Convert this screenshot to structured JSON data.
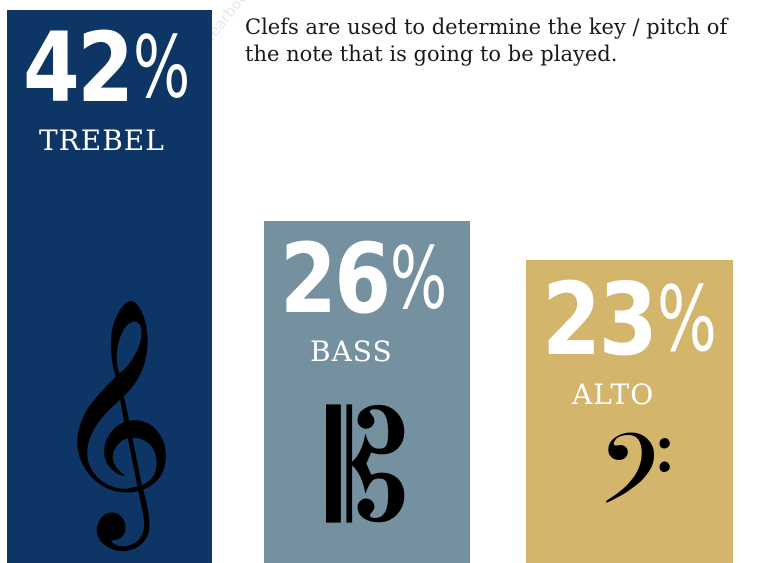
{
  "caption": "Clefs are used to determine the key / pitch of the note that is going to be played.",
  "watermark": "Proof Design Copyright Walsworth Yearbooks © Proof",
  "chart_data": {
    "type": "bar",
    "title": "",
    "categories": [
      "TREBEL",
      "BASS",
      "ALTO"
    ],
    "values": [
      42,
      26,
      23
    ],
    "value_labels": [
      "42",
      "26",
      "23"
    ],
    "unit_symbol": "%",
    "colors": [
      "#0d3565",
      "#7591a0",
      "#d3b66c"
    ],
    "icons": [
      "treble-clef-icon",
      "c-clef-icon",
      "bass-clef-icon"
    ],
    "icon_glyphs": [
      "𝄞",
      "𝄡",
      "𝄢"
    ],
    "ylim": [
      0,
      42
    ],
    "grid": false
  }
}
